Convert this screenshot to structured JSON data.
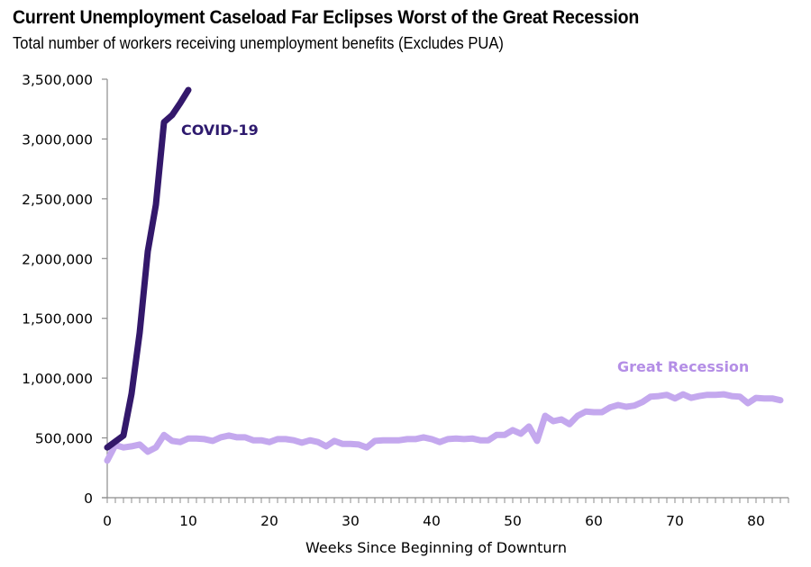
{
  "chart_data": {
    "type": "line",
    "title": "Current Unemployment Caseload Far Eclipses Worst of the Great Recession",
    "subtitle": "Total number of workers receiving unemployment benefits (Excludes PUA)",
    "xlabel": "Weeks Since Beginning of Downturn",
    "ylabel": "",
    "xlim": [
      0,
      84
    ],
    "ylim": [
      0,
      3500000
    ],
    "x_ticks": [
      0,
      10,
      20,
      30,
      40,
      50,
      60,
      70,
      80
    ],
    "x_tick_labels": [
      "0",
      "10",
      "20",
      "30",
      "40",
      "50",
      "60",
      "70",
      "80"
    ],
    "y_ticks": [
      0,
      500000,
      1000000,
      1500000,
      2000000,
      2500000,
      3000000,
      3500000
    ],
    "y_tick_labels": [
      "0",
      "500,000",
      "1,000,000",
      "1,500,000",
      "2,000,000",
      "2,500,000",
      "3,000,000",
      "3,500,000"
    ],
    "grid": false,
    "legend": "inline labels",
    "series": [
      {
        "name": "Great Recession",
        "color": "#c4a8ee",
        "label_color": "#b48ee6",
        "x": [
          0,
          1,
          2,
          3,
          4,
          5,
          6,
          7,
          8,
          9,
          10,
          11,
          12,
          13,
          14,
          15,
          16,
          17,
          18,
          19,
          20,
          21,
          22,
          23,
          24,
          25,
          26,
          27,
          28,
          29,
          30,
          31,
          32,
          33,
          34,
          35,
          36,
          37,
          38,
          39,
          40,
          41,
          42,
          43,
          44,
          45,
          46,
          47,
          48,
          49,
          50,
          51,
          52,
          53,
          54,
          55,
          56,
          57,
          58,
          59,
          60,
          61,
          62,
          63,
          64,
          65,
          66,
          67,
          68,
          69,
          70,
          71,
          72,
          73,
          74,
          75,
          76,
          77,
          78,
          79,
          80,
          81,
          82,
          83
        ],
        "values": [
          310000,
          440000,
          420000,
          430000,
          445000,
          385000,
          420000,
          525000,
          475000,
          465000,
          495000,
          495000,
          490000,
          475000,
          505000,
          520000,
          505000,
          505000,
          480000,
          480000,
          465000,
          490000,
          490000,
          480000,
          460000,
          480000,
          465000,
          430000,
          475000,
          450000,
          450000,
          445000,
          420000,
          475000,
          480000,
          480000,
          480000,
          490000,
          490000,
          505000,
          490000,
          465000,
          490000,
          495000,
          490000,
          495000,
          480000,
          480000,
          525000,
          525000,
          565000,
          535000,
          595000,
          475000,
          685000,
          640000,
          655000,
          615000,
          685000,
          720000,
          715000,
          715000,
          755000,
          775000,
          760000,
          770000,
          800000,
          845000,
          850000,
          860000,
          830000,
          865000,
          835000,
          850000,
          860000,
          860000,
          865000,
          850000,
          845000,
          790000,
          835000,
          830000,
          830000,
          815000
        ]
      },
      {
        "name": "COVID-19",
        "color": "#33186b",
        "label_color": "#2e1a6e",
        "x": [
          0,
          1,
          2,
          3,
          4,
          5,
          6,
          7,
          8,
          9,
          10
        ],
        "values": [
          420000,
          470000,
          520000,
          870000,
          1380000,
          2060000,
          2450000,
          3140000,
          3200000,
          3300000,
          3410000
        ]
      }
    ],
    "annotations": [
      {
        "text": "COVID-19",
        "series": "COVID-19"
      },
      {
        "text": "Great Recession",
        "series": "Great Recession"
      }
    ]
  }
}
